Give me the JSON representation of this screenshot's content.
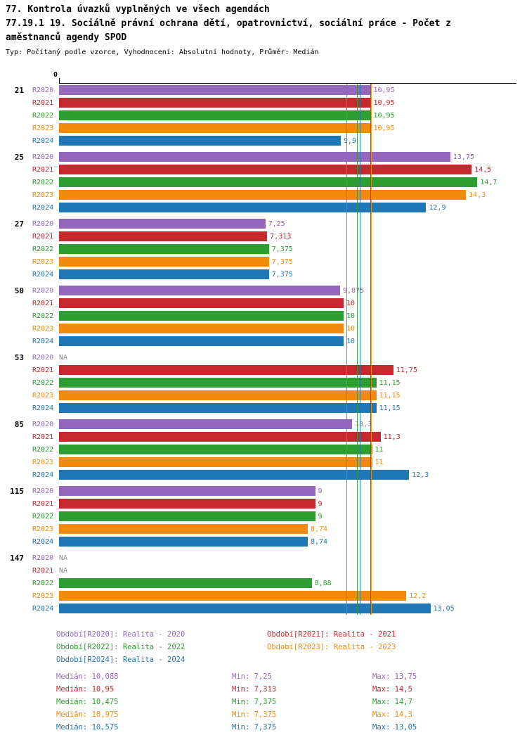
{
  "header": {
    "line1": "77. Kontrola úvazků vyplněných ve všech agendách",
    "line2a": "77.19.1 19. Sociálně právní ochrana dětí, opatrovnictví, sociální práce - Počet z",
    "line2b": "aměstnanců agendy SPOD",
    "line3": "Typ: Počítaný podle vzorce, Vyhodnocení: Absolutní hodnoty, Průměr: Medián"
  },
  "axis": {
    "origin_label": "0"
  },
  "chart_data": {
    "type": "bar",
    "orientation": "horizontal",
    "xlim": [
      0,
      15.5
    ],
    "na_color": "#8a8a8a",
    "series": [
      {
        "name": "R2020",
        "color": "#9467bd",
        "median": 10.088
      },
      {
        "name": "R2021",
        "color": "#c5282f",
        "median": 10.95
      },
      {
        "name": "R2022",
        "color": "#2e9d32",
        "median": 10.475
      },
      {
        "name": "R2023",
        "color": "#f28b0c",
        "median": 10.975
      },
      {
        "name": "R2024",
        "color": "#1f77b4",
        "median": 10.575
      }
    ],
    "groups": [
      {
        "label": "21",
        "values": [
          10.95,
          10.95,
          10.95,
          10.95,
          9.9
        ],
        "displays": [
          "10,95",
          "10,95",
          "10,95",
          "10,95",
          "9,9"
        ]
      },
      {
        "label": "25",
        "values": [
          13.75,
          14.5,
          14.7,
          14.3,
          12.9
        ],
        "displays": [
          "13,75",
          "14,5",
          "14,7",
          "14,3",
          "12,9"
        ]
      },
      {
        "label": "27",
        "values": [
          7.25,
          7.313,
          7.375,
          7.375,
          7.375
        ],
        "displays": [
          "7,25",
          "7,313",
          "7,375",
          "7,375",
          "7,375"
        ]
      },
      {
        "label": "50",
        "values": [
          9.875,
          10,
          10,
          10,
          10
        ],
        "displays": [
          "9,875",
          "10",
          "10",
          "10",
          "10"
        ]
      },
      {
        "label": "53",
        "values": [
          null,
          11.75,
          11.15,
          11.15,
          11.15
        ],
        "displays": [
          "NA",
          "11,75",
          "11,15",
          "11,15",
          "11,15"
        ]
      },
      {
        "label": "85",
        "values": [
          10.3,
          11.3,
          11,
          11,
          12.3
        ],
        "displays": [
          "10,3",
          "11,3",
          "11",
          "11",
          "12,3"
        ]
      },
      {
        "label": "115",
        "values": [
          9,
          9,
          9,
          8.74,
          8.74
        ],
        "displays": [
          "9",
          "9",
          "9",
          "8,74",
          "8,74"
        ]
      },
      {
        "label": "147",
        "values": [
          null,
          null,
          8.88,
          12.2,
          13.05
        ],
        "displays": [
          "NA",
          "NA",
          "8,88",
          "12,2",
          "13,05"
        ]
      }
    ]
  },
  "legend": [
    {
      "label": "Období[R2020]: Realita - 2020",
      "color": "#9467bd"
    },
    {
      "label": "Období[R2021]: Realita - 2021",
      "color": "#c5282f"
    },
    {
      "label": "Období[R2022]: Realita - 2022",
      "color": "#2e9d32"
    },
    {
      "label": "Období[R2023]: Realita - 2023",
      "color": "#f28b0c"
    },
    {
      "label": "Období[R2024]: Realita - 2024",
      "color": "#1f77b4"
    }
  ],
  "stats": [
    {
      "median": "Medián: 10,088",
      "min": "Min: 7,25",
      "max": "Max: 13,75",
      "color": "#9467bd"
    },
    {
      "median": "Medián: 10,95",
      "min": "Min: 7,313",
      "max": "Max: 14,5",
      "color": "#c5282f"
    },
    {
      "median": "Medián: 10,475",
      "min": "Min: 7,375",
      "max": "Max: 14,7",
      "color": "#2e9d32"
    },
    {
      "median": "Medián: 10,975",
      "min": "Min: 7,375",
      "max": "Max: 14,3",
      "color": "#f28b0c"
    },
    {
      "median": "Medián: 10,575",
      "min": "Min: 7,375",
      "max": "Max: 13,05",
      "color": "#1f77b4"
    }
  ]
}
